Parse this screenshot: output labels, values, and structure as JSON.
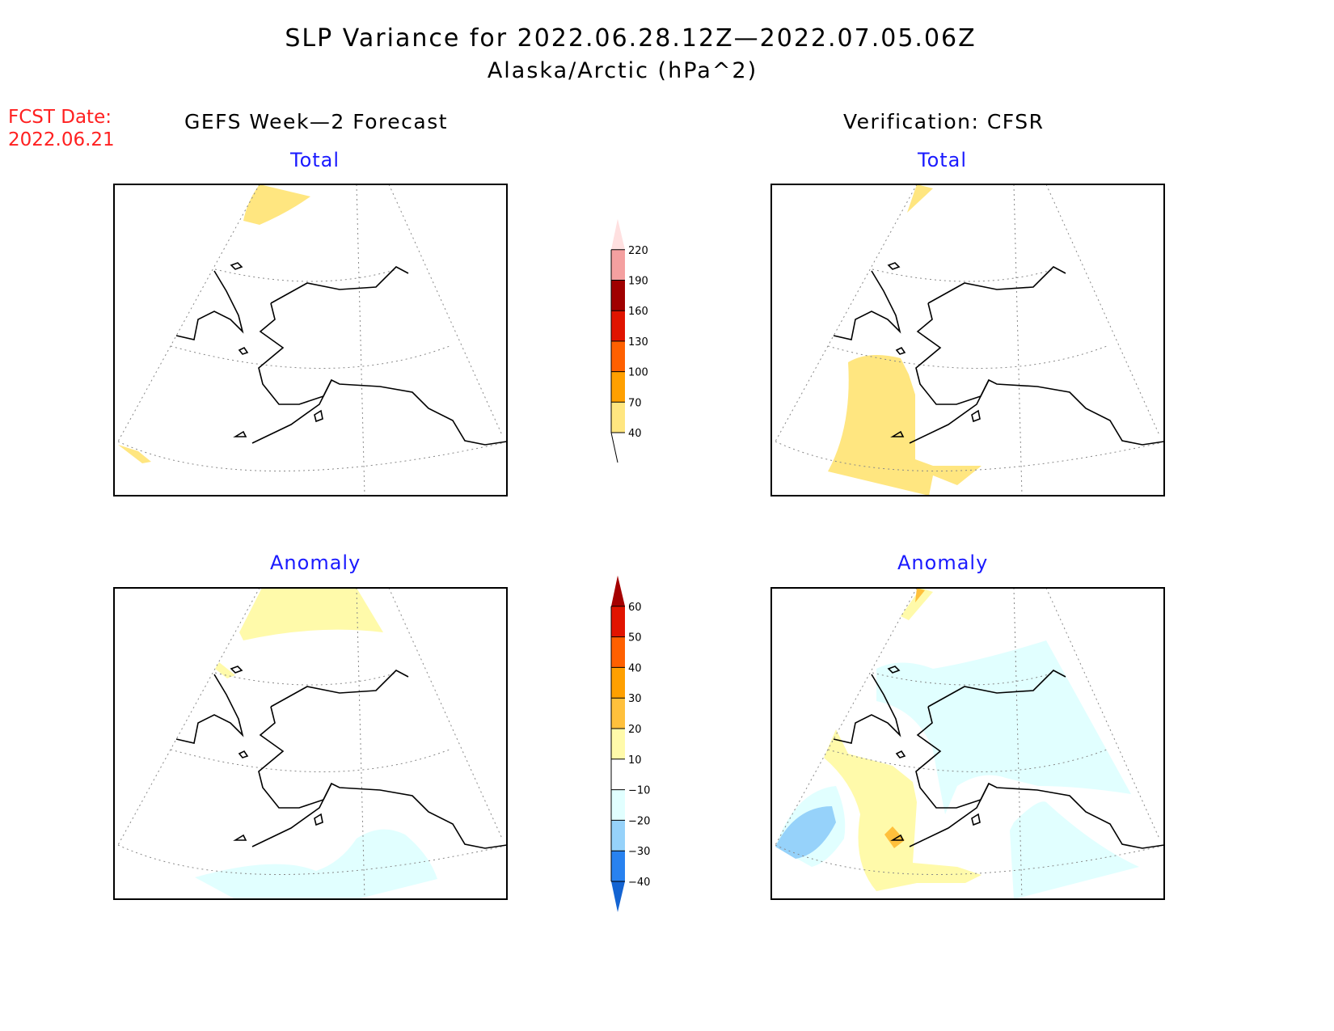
{
  "title": {
    "line1": "SLP Variance for 2022.06.28.12Z—2022.07.05.06Z",
    "line2": "Alaska/Arctic (hPa^2)"
  },
  "fcst": {
    "label": "FCST Date:",
    "date": "2022.06.21"
  },
  "columns": {
    "left": "GEFS Week—2 Forecast",
    "right": "Verification: CFSR"
  },
  "panels": {
    "total": "Total",
    "anomaly": "Anomaly"
  },
  "chart_data": [
    {
      "type": "heatmap",
      "title": "Total",
      "variable": "SLP variance (hPa^2)",
      "colorbar": {
        "levels": [
          "40",
          "70",
          "100",
          "130",
          "160",
          "190",
          "220"
        ],
        "colors": [
          "#ffe680",
          "#ffa000",
          "#ff6000",
          "#e01400",
          "#a00000",
          "#f4a0a0",
          "#ffe0e0"
        ]
      }
    },
    {
      "type": "heatmap",
      "title": "Anomaly",
      "variable": "SLP variance anomaly (hPa^2)",
      "colorbar": {
        "levels": [
          "−40",
          "−30",
          "−20",
          "−10",
          "10",
          "20",
          "30",
          "40",
          "50",
          "60"
        ],
        "colors": [
          "#1464d2",
          "#2882f0",
          "#96d2fa",
          "#e1ffff",
          "#ffffff",
          "#fffaaa",
          "#ffc03c",
          "#ffa000",
          "#ff6000",
          "#e11400",
          "#a50000"
        ]
      }
    }
  ]
}
